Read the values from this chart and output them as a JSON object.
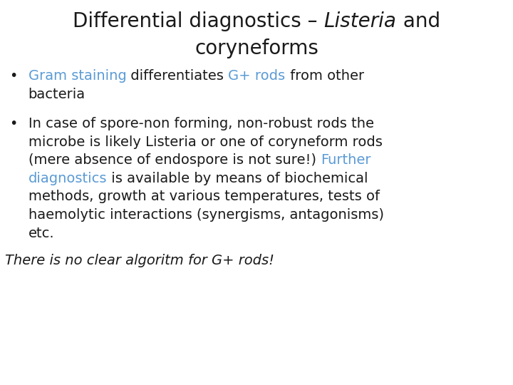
{
  "bg_color": "#ffffff",
  "title_color": "#1a1a1a",
  "body_color": "#1a1a1a",
  "highlight_color": "#5b9bd5",
  "title_fs": 20,
  "body_fs": 14,
  "footer_fs": 14,
  "title_line1_prefix": "Differential diagnostics – ",
  "title_line1_italic": "Listeria",
  "title_line1_suffix": " and",
  "title_line2": "coryneforms",
  "footer": "There is no clear algoritm for G+ rods!",
  "bullet_char": "•",
  "b1_line1_segs": [
    [
      "Gram staining",
      "#5b9bd5"
    ],
    [
      " differentiates ",
      "#1a1a1a"
    ],
    [
      "G+ rods",
      "#5b9bd5"
    ],
    [
      " from other",
      "#1a1a1a"
    ]
  ],
  "b1_line2": "bacteria",
  "b2_lines": [
    [
      [
        "In case of spore-non forming, non-robust rods the",
        "#1a1a1a"
      ]
    ],
    [
      [
        "microbe is likely Listeria or one of coryneform rods",
        "#1a1a1a"
      ]
    ],
    [
      [
        "(mere absence of endospore is not sure!) ",
        "#1a1a1a"
      ],
      [
        "Further",
        "#5b9bd5"
      ]
    ],
    [
      [
        "diagnostics",
        "#5b9bd5"
      ],
      [
        " is available by means of biochemical",
        "#1a1a1a"
      ]
    ],
    [
      [
        "methods, growth at various temperatures, tests of",
        "#1a1a1a"
      ]
    ],
    [
      [
        "haemolytic interactions (synergisms, antagonisms)",
        "#1a1a1a"
      ]
    ],
    [
      [
        "etc.",
        "#1a1a1a"
      ]
    ]
  ]
}
